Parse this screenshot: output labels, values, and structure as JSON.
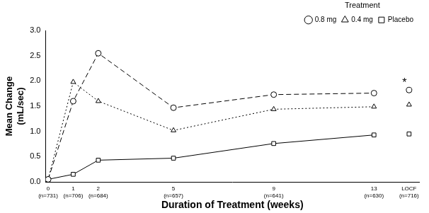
{
  "chart_data": {
    "type": "line",
    "x_label": "Duration of Treatment (weeks)",
    "y_label": [
      "Mean Change",
      "(mL/sec)"
    ],
    "legend_title": "Treatment",
    "legend": "upper right",
    "grid": false,
    "x": [
      0,
      1,
      2,
      5,
      9,
      13,
      14.4
    ],
    "xlim": [
      -0.1,
      14.8
    ],
    "xticks": [
      {
        "value": 0,
        "label": "0\n(n=731)"
      },
      {
        "value": 1,
        "label": "1\n(n=706)"
      },
      {
        "value": 2,
        "label": "2\n(n=684)"
      },
      {
        "value": 5,
        "label": "5\n(n=657)"
      },
      {
        "value": 9,
        "label": "9\n(n=641)"
      },
      {
        "value": 13,
        "label": "13\n(n=630)"
      },
      {
        "value": 14.4,
        "label": "LOCF\n(n=716)"
      }
    ],
    "ylim": [
      0,
      3
    ],
    "yticks": [
      {
        "value": 0,
        "label": "0.0"
      },
      0.5,
      {
        "value": 1,
        "label": "1.0"
      },
      1.5,
      {
        "value": 2,
        "label": "2.0"
      },
      2.5,
      {
        "value": 3,
        "label": "3.0"
      }
    ],
    "series": [
      {
        "name": "0.8 mg",
        "color": "#000000",
        "marker": "circle",
        "line_style": "dashed",
        "values": [
          0.05,
          1.6,
          2.55,
          1.47,
          1.73,
          1.76,
          1.82
        ]
      },
      {
        "name": "0.4 mg",
        "color": "#000000",
        "marker": "triangle",
        "line_style": "dotted",
        "values": [
          0.05,
          1.98,
          1.6,
          1.02,
          1.44,
          1.49,
          1.53
        ]
      },
      {
        "name": "Placebo",
        "color": "#000000",
        "marker": "square",
        "line_style": "solid",
        "values": [
          0.05,
          0.15,
          0.43,
          0.47,
          0.76,
          0.93,
          0.95
        ]
      }
    ],
    "annotations": [
      {
        "text": "*",
        "x": 14.22,
        "y": 1.96
      }
    ]
  }
}
